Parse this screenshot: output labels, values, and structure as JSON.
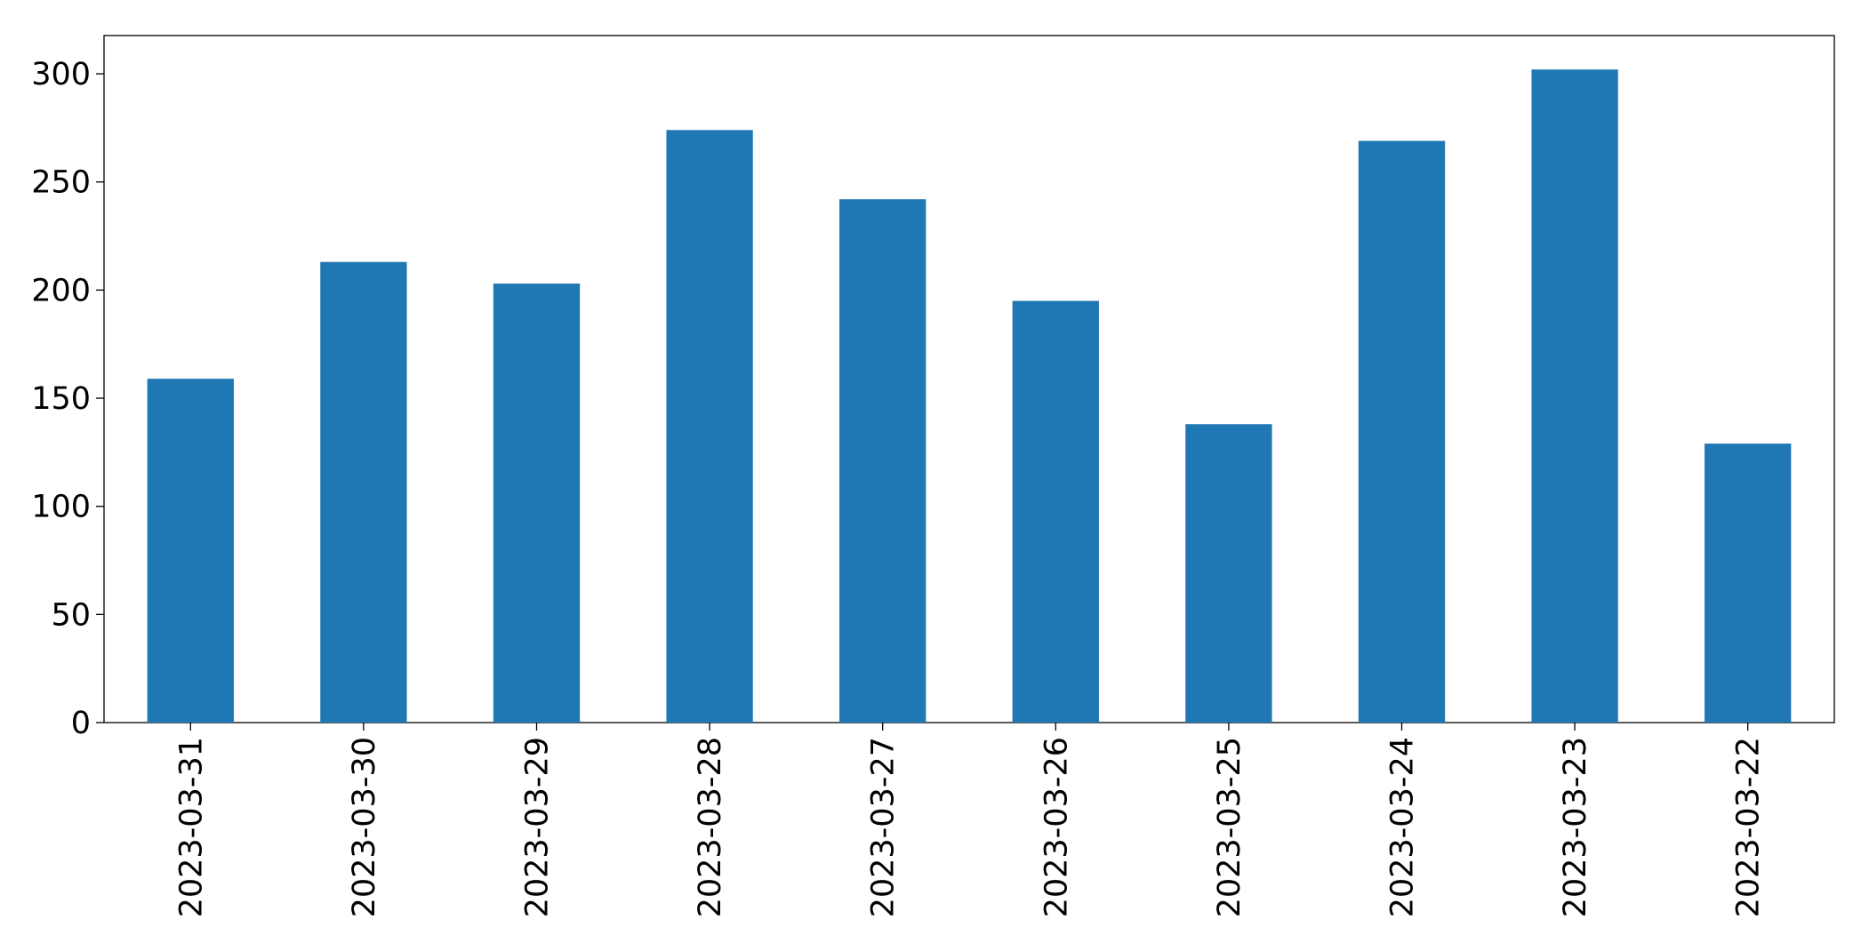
{
  "chart_data": {
    "type": "bar",
    "categories": [
      "2023-03-31",
      "2023-03-30",
      "2023-03-29",
      "2023-03-28",
      "2023-03-27",
      "2023-03-26",
      "2023-03-25",
      "2023-03-24",
      "2023-03-23",
      "2023-03-22"
    ],
    "values": [
      159,
      213,
      203,
      274,
      242,
      195,
      138,
      269,
      302,
      129
    ],
    "color": "#1f77b4",
    "ylim": [
      0,
      317.7
    ],
    "yticks": [
      0,
      50,
      100,
      150,
      200,
      250,
      300
    ],
    "grid": false
  }
}
